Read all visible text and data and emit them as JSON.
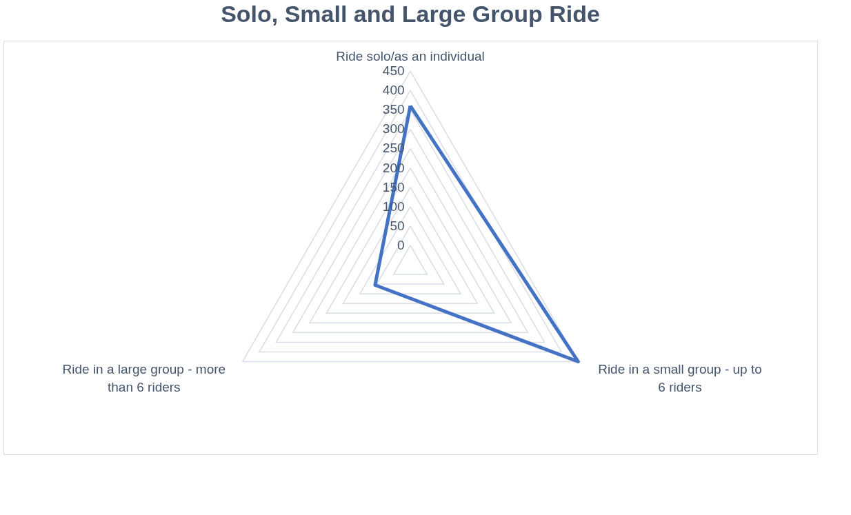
{
  "chart_data": {
    "type": "radar",
    "title": "Solo, Small and Large Group Ride",
    "categories": [
      "Ride solo/as an individual",
      "Ride in a small group - up to 6 riders",
      "Ride in a large group - more than 6 riders"
    ],
    "series": [
      {
        "color": "#4472c4",
        "values": [
          360,
          450,
          55
        ]
      }
    ],
    "ylim": [
      -50,
      450
    ],
    "yticks": [
      0,
      50,
      100,
      150,
      200,
      250,
      300,
      350,
      400,
      450
    ],
    "grid": true
  }
}
